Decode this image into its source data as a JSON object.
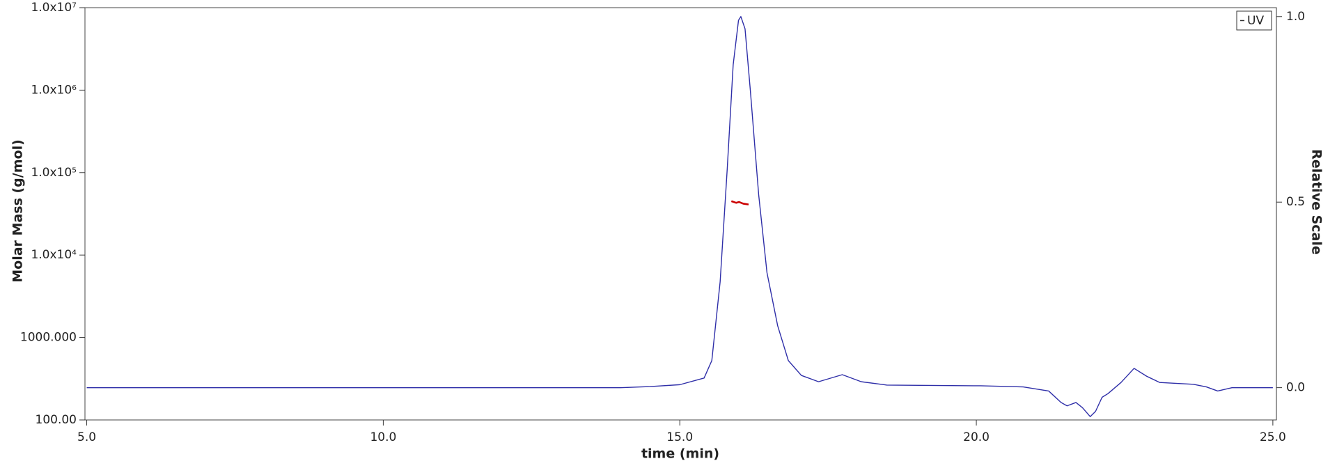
{
  "chart_data": {
    "type": "line",
    "xlabel": "time (min)",
    "ylabel": "Molar Mass (g/mol)",
    "y2label": "Relative Scale",
    "xlim": [
      4.97,
      25.06
    ],
    "xticks": [
      {
        "value": 5,
        "label": "5.0"
      },
      {
        "value": 10,
        "label": "10.0"
      },
      {
        "value": 15,
        "label": "15.0"
      },
      {
        "value": 20,
        "label": "20.0"
      },
      {
        "value": 25,
        "label": "25.0"
      }
    ],
    "ylim": [
      100,
      10000000
    ],
    "yscale": "log",
    "yticks": [
      {
        "value": 100,
        "label": "100.00"
      },
      {
        "value": 1000,
        "label": "1000.000"
      },
      {
        "value": 10000,
        "label": "1.0x10⁴"
      },
      {
        "value": 100000,
        "label": "1.0x10⁵"
      },
      {
        "value": 1000000,
        "label": "1.0x10⁶"
      },
      {
        "value": 10000000,
        "label": "1.0x10⁷"
      }
    ],
    "y2lim": [
      -0.087,
      1.024
    ],
    "y2ticks": [
      {
        "value": 0,
        "label": "0.0"
      },
      0.5,
      {
        "value": 1,
        "label": "1.0"
      }
    ],
    "legend": "top-right",
    "series": [
      {
        "name": "UV",
        "color": "#2e2ea8",
        "axis": "y2",
        "x": [
          5.0,
          6.0,
          10.0,
          14.0,
          14.5,
          15.0,
          15.41,
          15.54,
          15.68,
          15.8,
          15.9,
          15.99,
          16.03,
          16.1,
          16.19,
          16.33,
          16.47,
          16.65,
          16.83,
          17.05,
          17.34,
          17.74,
          18.06,
          18.49,
          20.07,
          20.79,
          21.22,
          21.43,
          21.53,
          21.68,
          21.79,
          21.92,
          22.01,
          22.12,
          22.22,
          22.44,
          22.66,
          22.87,
          23.09,
          23.66,
          23.88,
          24.07,
          24.31,
          25.0
        ],
        "values": [
          0.0,
          0.0,
          0.0,
          0.0,
          0.003,
          0.008,
          0.026,
          0.073,
          0.285,
          0.59,
          0.87,
          0.99,
          1.0,
          0.967,
          0.8,
          0.52,
          0.31,
          0.167,
          0.073,
          0.033,
          0.016,
          0.035,
          0.016,
          0.007,
          0.005,
          0.002,
          -0.009,
          -0.04,
          -0.049,
          -0.04,
          -0.054,
          -0.078,
          -0.064,
          -0.026,
          -0.016,
          0.014,
          0.052,
          0.031,
          0.014,
          0.009,
          0.002,
          -0.009,
          0.0,
          0.0
        ]
      },
      {
        "color": "#cc0000",
        "axis": "y",
        "x": [
          15.87,
          15.95,
          16.0,
          16.07,
          16.16
        ],
        "values": [
          45000,
          43000,
          44000,
          42000,
          41000
        ]
      }
    ]
  }
}
